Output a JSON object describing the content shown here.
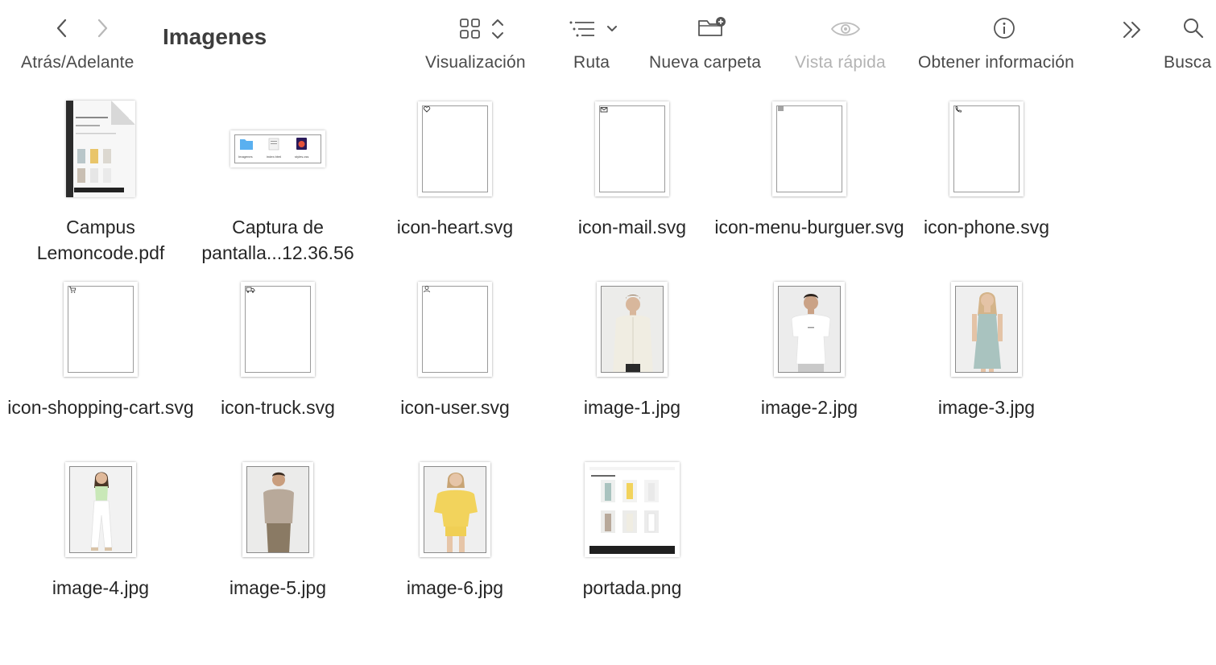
{
  "toolbar": {
    "back_forward_label": "Atrás/Adelante",
    "title": "Imagenes",
    "view_label": "Visualización",
    "path_label": "Ruta",
    "new_folder_label": "Nueva carpeta",
    "quick_look_label": "Vista rápida",
    "get_info_label": "Obtener información",
    "search_label": "Busca"
  },
  "files": [
    {
      "name": "Campus Lemoncode.pdf",
      "kind": "pdf"
    },
    {
      "name": "Captura de pantalla...12.36.56",
      "kind": "screenshot"
    },
    {
      "name": "icon-heart.svg",
      "kind": "svg",
      "icon": "heart-icon"
    },
    {
      "name": "icon-mail.svg",
      "kind": "svg",
      "icon": "mail-icon"
    },
    {
      "name": "icon-menu-burguer.svg",
      "kind": "svg",
      "icon": "menu-icon"
    },
    {
      "name": "icon-phone.svg",
      "kind": "svg",
      "icon": "phone-icon"
    },
    {
      "name": "icon-shopping-cart.svg",
      "kind": "svg",
      "icon": "cart-icon"
    },
    {
      "name": "icon-truck.svg",
      "kind": "svg",
      "icon": "truck-icon"
    },
    {
      "name": "icon-user.svg",
      "kind": "svg",
      "icon": "user-icon"
    },
    {
      "name": "image-1.jpg",
      "kind": "photo",
      "icon": "photo-man-shirt"
    },
    {
      "name": "image-2.jpg",
      "kind": "photo",
      "icon": "photo-man-tshirt"
    },
    {
      "name": "image-3.jpg",
      "kind": "photo",
      "icon": "photo-woman-dress"
    },
    {
      "name": "image-4.jpg",
      "kind": "photo",
      "icon": "photo-woman-white"
    },
    {
      "name": "image-5.jpg",
      "kind": "photo",
      "icon": "photo-man-polo"
    },
    {
      "name": "image-6.jpg",
      "kind": "photo",
      "icon": "photo-woman-yellow"
    },
    {
      "name": "portada.png",
      "kind": "portada"
    }
  ],
  "thumb_texts": {
    "shot_items": [
      "Imagenes",
      "index.html",
      "styles.css"
    ]
  },
  "colors": {
    "label_text": "#4a4a4a",
    "disabled_text": "#b3b3b3",
    "folder_blue": "#5ab0f0"
  }
}
